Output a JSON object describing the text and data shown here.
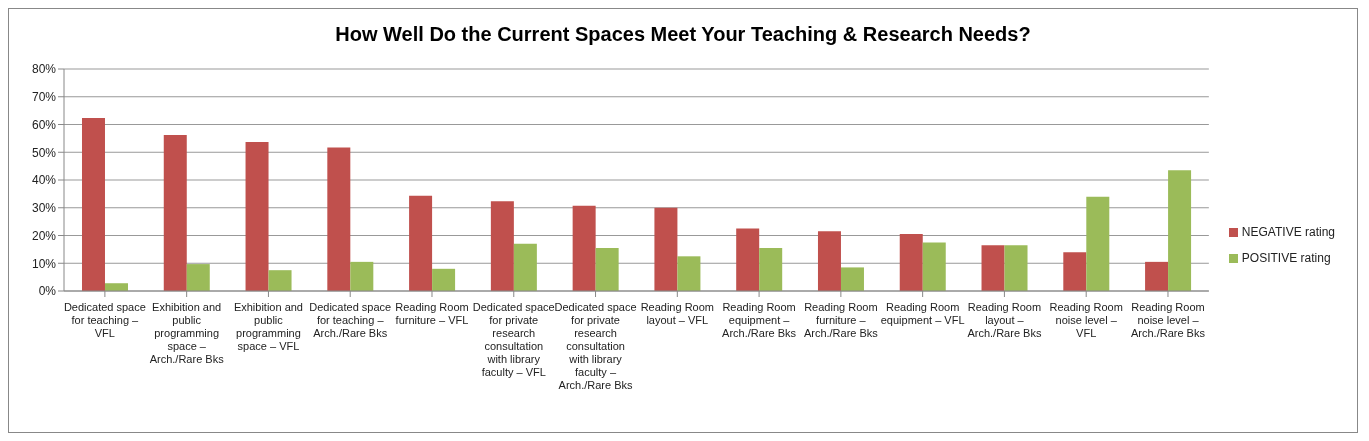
{
  "chart_data": {
    "type": "bar",
    "title": "How Well Do the Current Spaces Meet Your Teaching & Research Needs?",
    "categories": [
      "Dedicated space for teaching – VFL",
      "Exhibition and public programming space – Arch./Rare Bks",
      "Exhibition and public programming space – VFL",
      "Dedicated space for teaching – Arch./Rare Bks",
      "Reading Room furniture – VFL",
      "Dedicated space for private research consultation with library faculty – VFL",
      "Dedicated space for private research consultation with library faculty – Arch./Rare Bks",
      "Reading Room layout – VFL",
      "Reading Room equipment – Arch./Rare Bks",
      "Reading Room furniture – Arch./Rare Bks",
      "Reading Room equipment – VFL",
      "Reading Room layout – Arch./Rare Bks",
      "Reading Room noise level – VFL",
      "Reading Room noise level – Arch./Rare Bks"
    ],
    "series": [
      {
        "name": "NEGATIVE rating",
        "color": "#c0504d",
        "values": [
          62.3,
          56.2,
          53.7,
          51.7,
          34.3,
          32.3,
          30.7,
          30,
          22.5,
          21.5,
          20.5,
          16.5,
          14,
          10.5
        ]
      },
      {
        "name": "POSITIVE rating",
        "color": "#9bbb59",
        "values": [
          2.8,
          9.7,
          7.5,
          10.5,
          8,
          17,
          15.5,
          12.5,
          15.5,
          8.5,
          17.5,
          16.5,
          34,
          43.5
        ]
      }
    ],
    "ylim": [
      0,
      80
    ],
    "yticks": [
      {
        "value": 0,
        "label": "0%"
      },
      {
        "value": 10,
        "label": "10%"
      },
      {
        "value": 20,
        "label": "20%"
      },
      {
        "value": 30,
        "label": "30%"
      },
      {
        "value": 40,
        "label": "40%"
      },
      {
        "value": 50,
        "label": "50%"
      },
      {
        "value": 60,
        "label": "60%"
      },
      {
        "value": 70,
        "label": "70%"
      },
      {
        "value": 80,
        "label": "80%"
      }
    ],
    "grid": "y",
    "legend": "right"
  }
}
